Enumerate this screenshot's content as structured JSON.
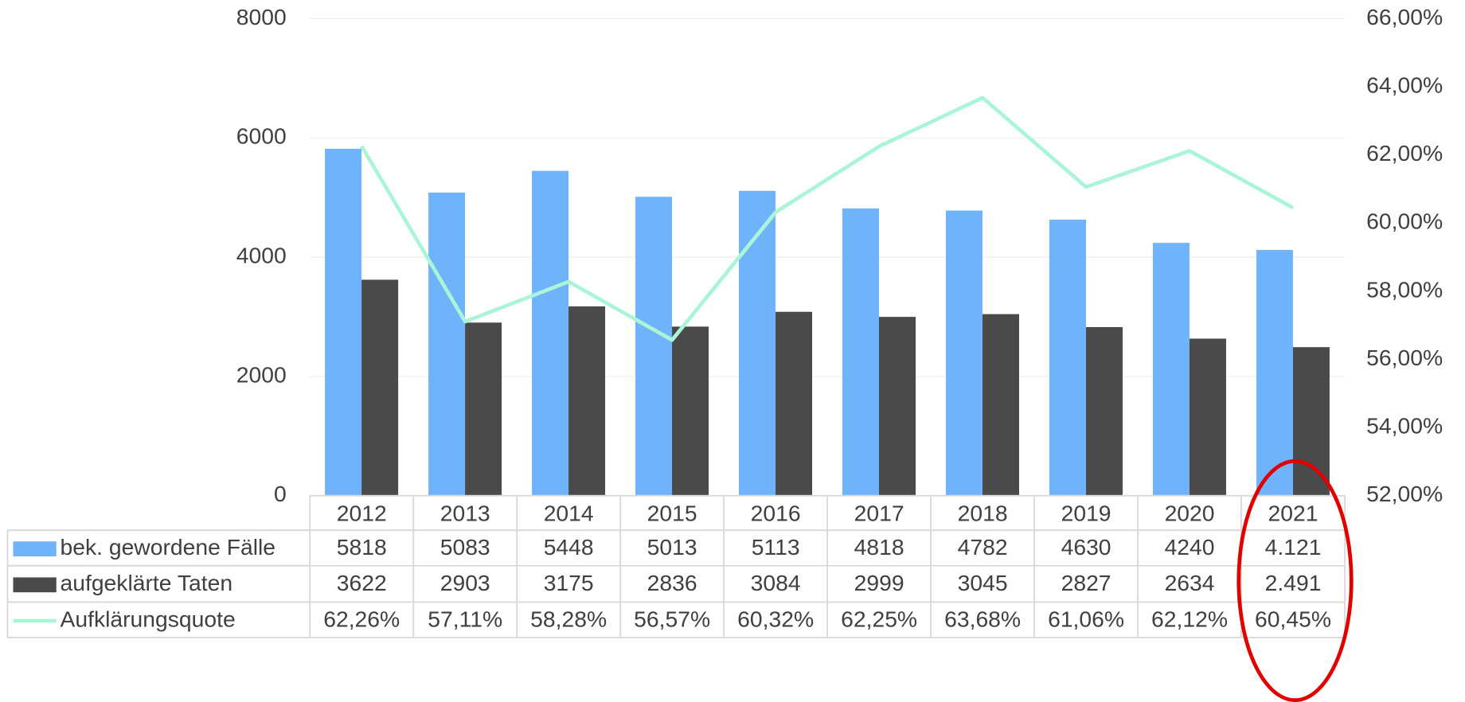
{
  "chart_data": {
    "type": "bar-line-table",
    "categories": [
      "2012",
      "2013",
      "2014",
      "2015",
      "2016",
      "2017",
      "2018",
      "2019",
      "2020",
      "2021"
    ],
    "series": [
      {
        "name": "bek. gewordene Fälle",
        "color": "#6fb3fb",
        "values": [
          5818,
          5083,
          5448,
          5013,
          5113,
          4818,
          4782,
          4630,
          4240,
          4121
        ],
        "value_labels": [
          "5818",
          "5083",
          "5448",
          "5013",
          "5113",
          "4818",
          "4782",
          "4630",
          "4240",
          "4.121"
        ]
      },
      {
        "name": "aufgeklärte Taten",
        "color": "#4a4a4a",
        "values": [
          3622,
          2903,
          3175,
          2836,
          3084,
          2999,
          3045,
          2827,
          2634,
          2491
        ],
        "value_labels": [
          "3622",
          "2903",
          "3175",
          "2836",
          "3084",
          "2999",
          "3045",
          "2827",
          "2634",
          "2.491"
        ]
      },
      {
        "name": "Aufklärungsquote",
        "color": "#aaf5d8",
        "axis": "y2",
        "type": "line",
        "values": [
          62.26,
          57.11,
          58.28,
          56.57,
          60.32,
          62.25,
          63.68,
          61.06,
          62.12,
          60.45
        ],
        "value_labels": [
          "62,26%",
          "57,11%",
          "58,28%",
          "56,57%",
          "60,32%",
          "62,25%",
          "63,68%",
          "61,06%",
          "62,12%",
          "60,45%"
        ]
      }
    ],
    "ylim": [
      0,
      8000
    ],
    "yticks": [
      0,
      2000,
      4000,
      6000,
      8000
    ],
    "y2lim": [
      52,
      66
    ],
    "y2ticks": [
      {
        "value": 52,
        "label": "52,00%"
      },
      {
        "value": 54,
        "label": "54,00%"
      },
      {
        "value": 56,
        "label": "56,00%"
      },
      {
        "value": 58,
        "label": "58,00%"
      },
      {
        "value": 60,
        "label": "60,00%"
      },
      {
        "value": 62,
        "label": "62,00%"
      },
      {
        "value": 64,
        "label": "64,00%"
      },
      {
        "value": 66,
        "label": "66,00%"
      }
    ],
    "grid": true
  }
}
